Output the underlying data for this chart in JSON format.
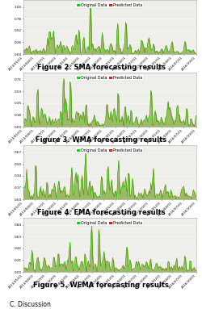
{
  "figures": [
    {
      "caption": "Figure 2. SMA forecasting results",
      "legend": [
        "Original Data",
        "Predicted Data"
      ]
    },
    {
      "caption": "Figure 3. WMA forecasting results",
      "legend": [
        "Original Data",
        "Predicted Data"
      ]
    },
    {
      "caption": "Figure 4. EMA forecasting results",
      "legend": [
        "Original Data",
        "Predicted Data"
      ]
    },
    {
      "caption": "Figure 5. WEMA forecasting results",
      "legend": [
        "Original Data",
        "Predicted Data"
      ]
    }
  ],
  "background_color": "#ffffff",
  "plot_bg_color": "#eeeeea",
  "original_color": "#00dd00",
  "predicted_color": "#dd2200",
  "fill_color": "#99bb66",
  "caption_fontsize": 6.0,
  "caption_fontweight": "bold",
  "legend_fontsize": 3.5,
  "tick_fontsize": 3.0,
  "ytick_fontsize": 3.0,
  "figsize": [
    2.5,
    3.83
  ],
  "dpi": 100
}
